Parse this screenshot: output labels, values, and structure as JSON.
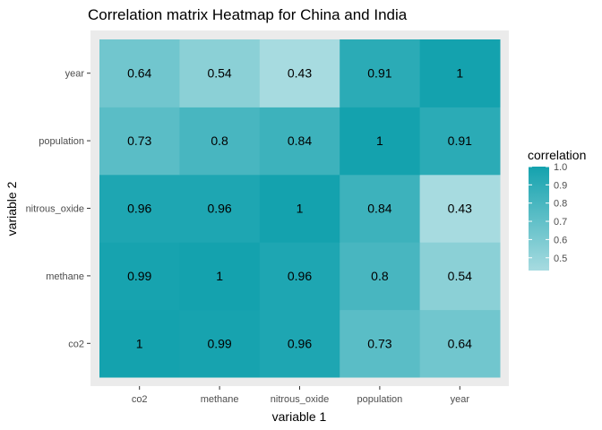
{
  "chart_data": {
    "type": "heatmap",
    "title": "Correlation matrix Heatmap for China and India",
    "xlabel": "variable 1",
    "ylabel": "variable 2",
    "x_categories": [
      "co2",
      "methane",
      "nitrous_oxide",
      "population",
      "year"
    ],
    "y_categories": [
      "co2",
      "methane",
      "nitrous_oxide",
      "population",
      "year"
    ],
    "values": [
      [
        1,
        0.99,
        0.96,
        0.73,
        0.64
      ],
      [
        0.99,
        1,
        0.96,
        0.8,
        0.54
      ],
      [
        0.96,
        0.96,
        1,
        0.84,
        0.43
      ],
      [
        0.73,
        0.8,
        0.84,
        1,
        0.91
      ],
      [
        0.64,
        0.54,
        0.43,
        0.91,
        1
      ]
    ],
    "legend": {
      "title": "correlation",
      "position": "right",
      "ticks": [
        "1.0",
        "0.9",
        "0.8",
        "0.7",
        "0.6",
        "0.5"
      ],
      "range": [
        0.43,
        1.0
      ],
      "low_color": "#a7dbe0",
      "high_color": "#14a2ae"
    },
    "panel_background": "#ebebeb",
    "grid": true
  }
}
